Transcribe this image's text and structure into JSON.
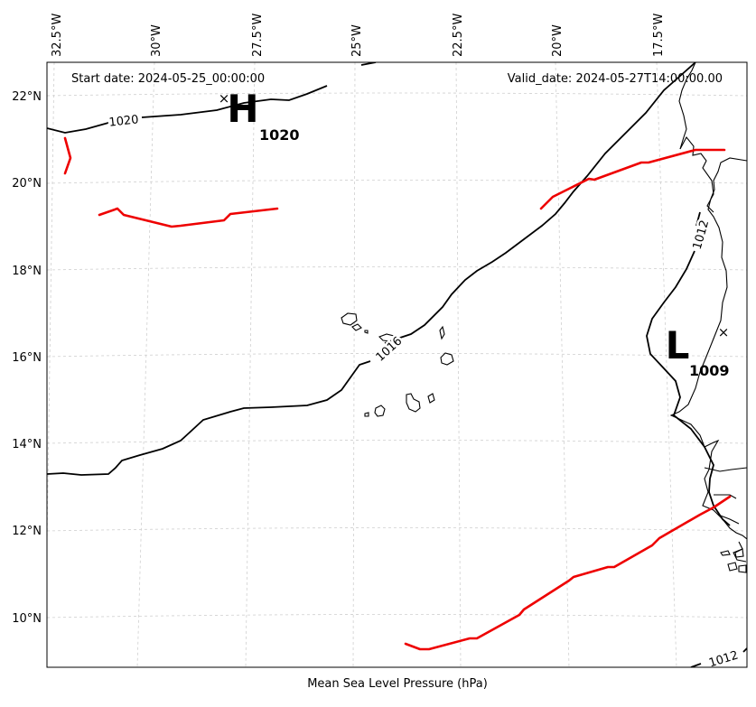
{
  "header": {
    "start_date": "Start date: 2024-05-25_00:00:00",
    "valid_date": "Valid_date: 2024-05-27T14:00:00.00"
  },
  "caption": "Mean Sea Level Pressure (hPa)",
  "axes": {
    "lon_ticks": [
      "32.5°W",
      "30°W",
      "27.5°W",
      "25°W",
      "22.5°W",
      "20°W",
      "17.5°W"
    ],
    "lat_ticks": [
      "22°N",
      "20°N",
      "18°N",
      "16°N",
      "14°N",
      "12°N",
      "10°N"
    ]
  },
  "pressure_centers": {
    "high": {
      "letter": "H",
      "value": "1020"
    },
    "low": {
      "letter": "L",
      "value": "1009"
    }
  },
  "isobars": {
    "northwest": "1020",
    "central": "1016",
    "coastal": "1012",
    "southeast": "1012"
  },
  "colors": {
    "front": "#ee0000",
    "isobar": "#000000",
    "grid": "#cfcfcf"
  }
}
